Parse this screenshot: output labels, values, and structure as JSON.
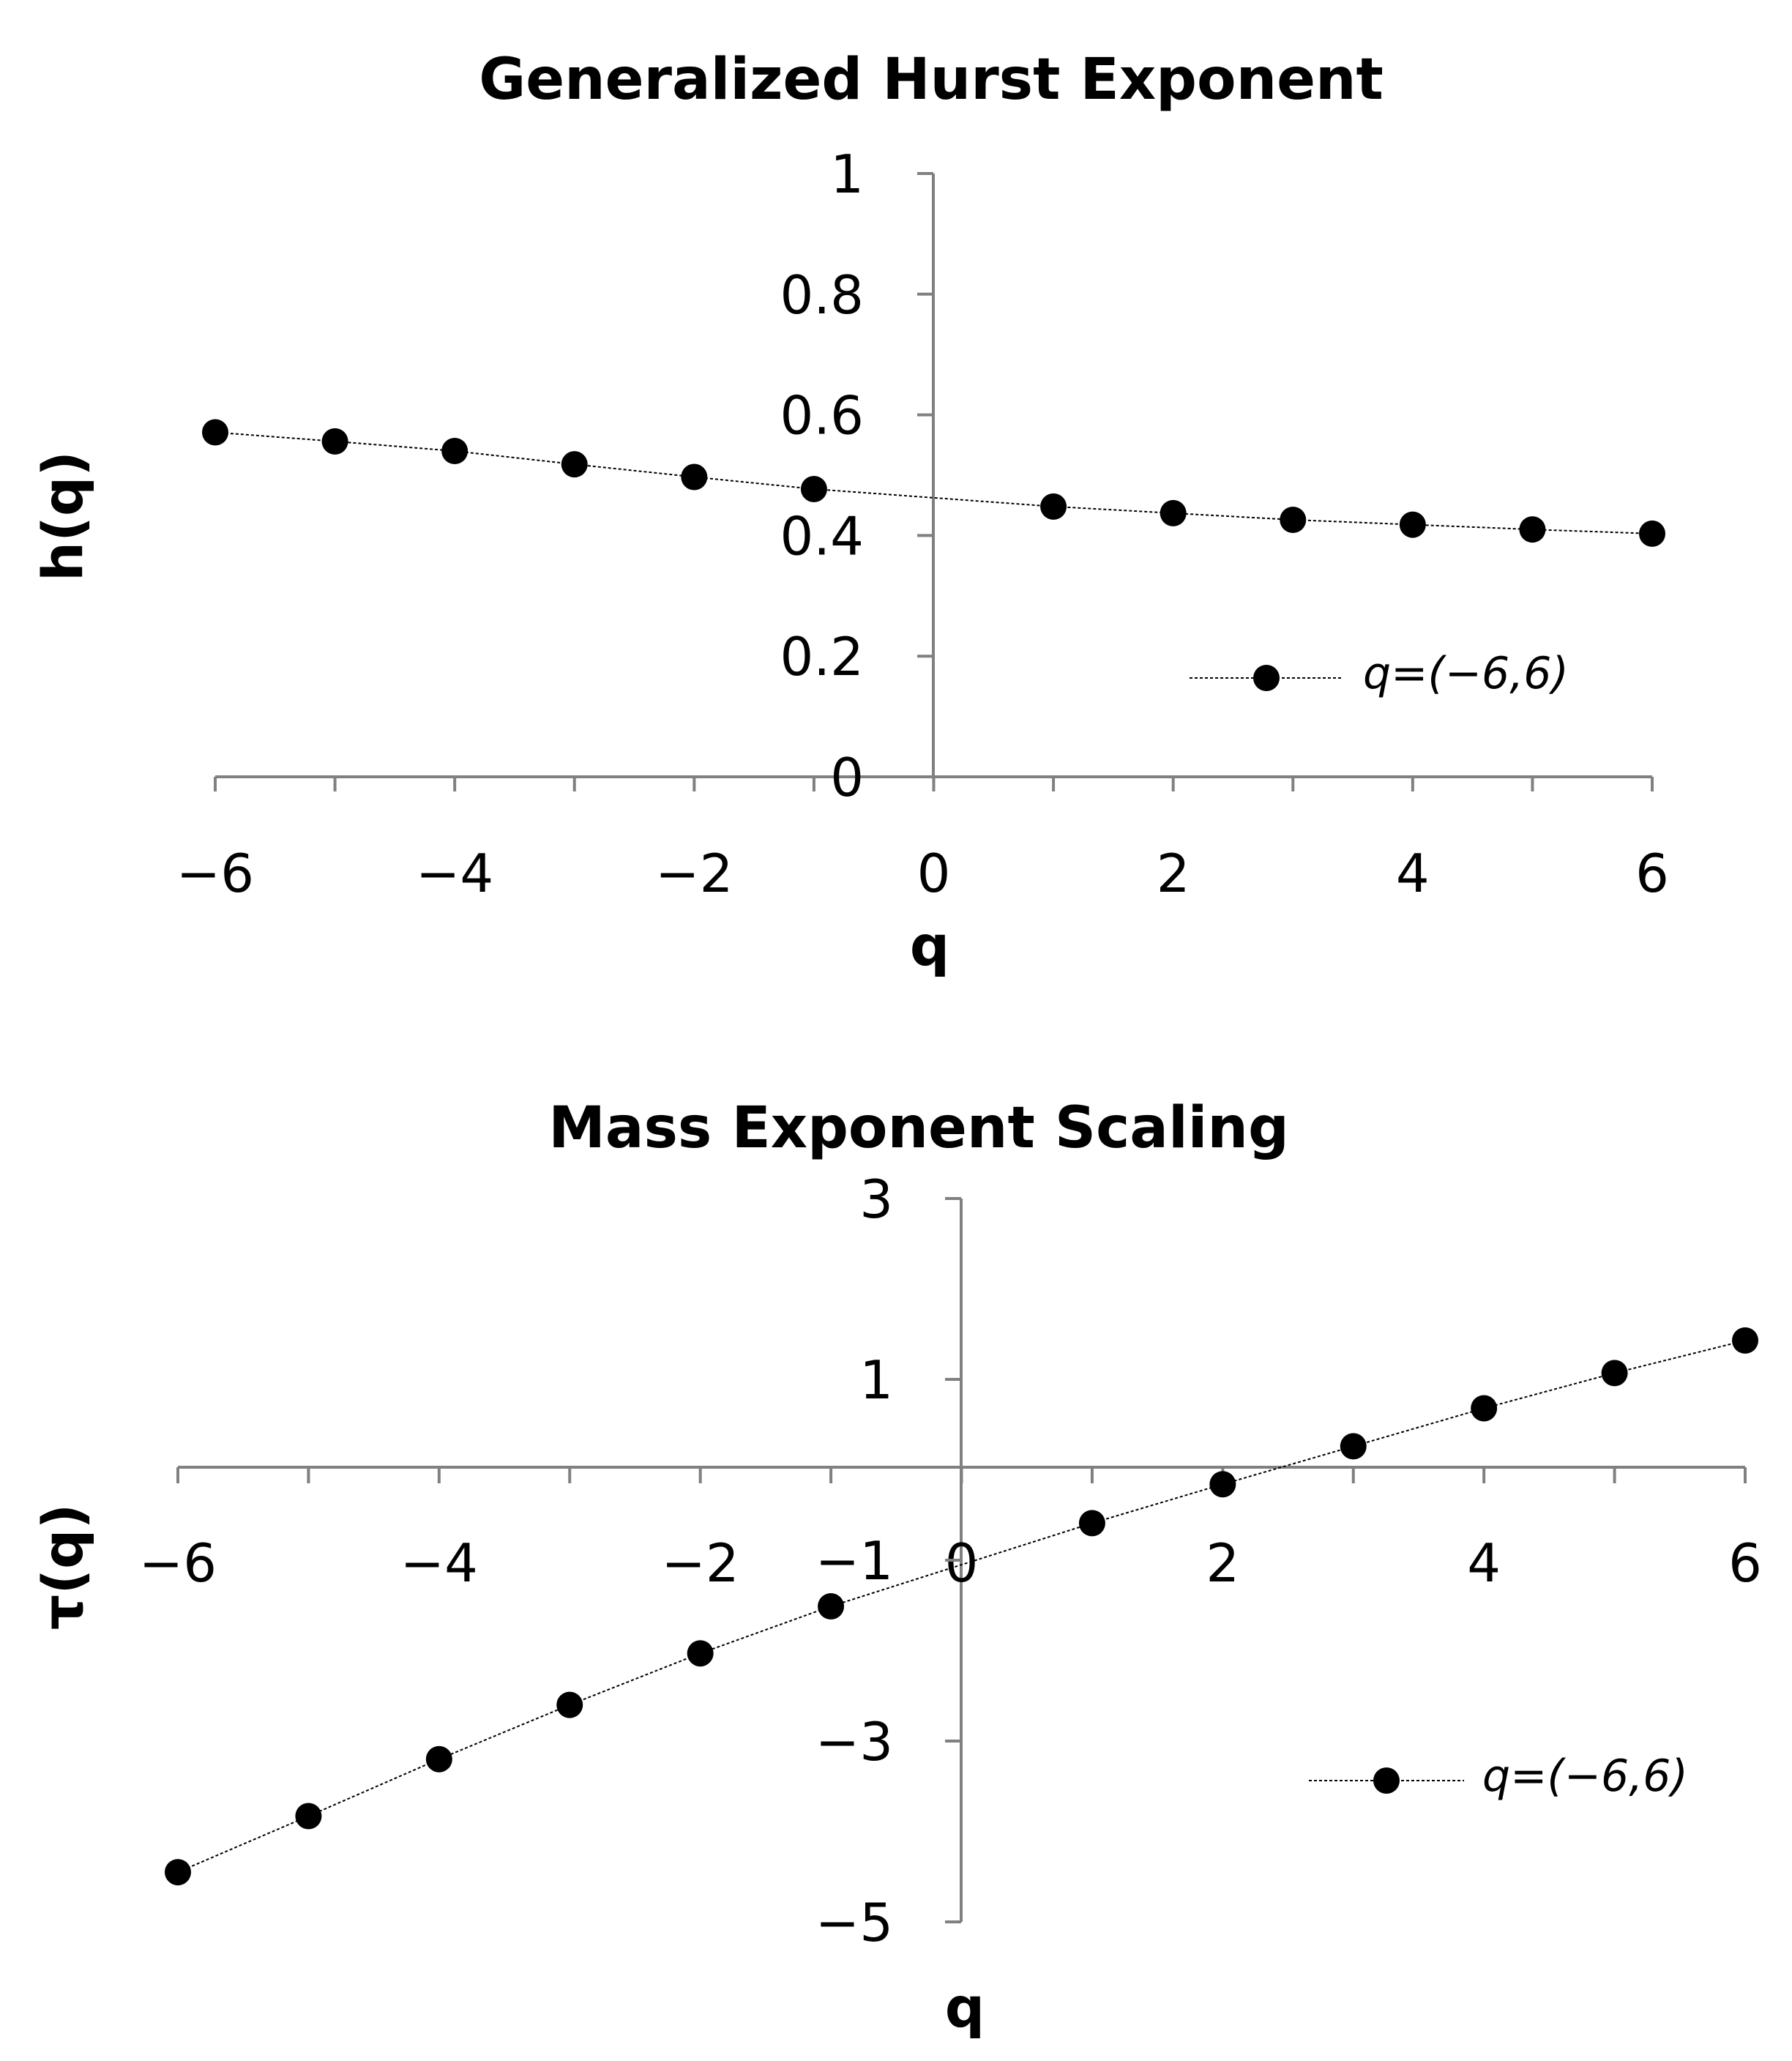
{
  "chart_data": [
    {
      "type": "line",
      "title": "Generalized Hurst Exponent",
      "xlabel": "q",
      "ylabel": "h(q)",
      "xlim": [
        -6,
        6
      ],
      "ylim": [
        0,
        1
      ],
      "x_ticks": [
        -6,
        -4,
        -2,
        0,
        2,
        4,
        6
      ],
      "x_tick_labels": [
        "−6",
        "−4",
        "−2",
        "0",
        "2",
        "4",
        "6"
      ],
      "y_ticks": [
        0,
        0.2,
        0.4,
        0.6,
        0.8,
        1
      ],
      "y_tick_labels": [
        "0",
        "0.2",
        "0.4",
        "0.6",
        "0.8",
        "1"
      ],
      "legend": "right",
      "grid": false,
      "series": [
        {
          "name": "q=(−6,6)",
          "x": [
            -6,
            -5,
            -4,
            -3,
            -2,
            -1,
            1,
            2,
            3,
            4,
            5,
            6
          ],
          "y": [
            0.571,
            0.556,
            0.54,
            0.518,
            0.497,
            0.477,
            0.448,
            0.437,
            0.426,
            0.418,
            0.41,
            0.403
          ]
        }
      ]
    },
    {
      "type": "line",
      "title": "Mass Exponent Scaling",
      "xlabel": "q",
      "ylabel": "τ(q)",
      "xlim": [
        -6,
        6
      ],
      "ylim": [
        -5,
        3
      ],
      "x_ticks": [
        -6,
        -4,
        -2,
        0,
        2,
        4,
        6
      ],
      "x_tick_labels": [
        "−6",
        "−4",
        "−2",
        "0",
        "2",
        "4",
        "6"
      ],
      "y_ticks": [
        -5,
        -3,
        -1,
        1,
        3
      ],
      "y_tick_labels": [
        "−5",
        "−3",
        "−1",
        "1",
        "3"
      ],
      "legend": "bottom-right",
      "grid": false,
      "series": [
        {
          "name": "q=(−6,6)",
          "x": [
            -6,
            -5,
            -4,
            -3,
            -2,
            -1,
            1,
            2,
            3,
            4,
            5,
            6
          ],
          "y": [
            -4.45,
            -3.83,
            -3.2,
            -2.6,
            -2.03,
            -1.51,
            -0.59,
            -0.16,
            0.26,
            0.68,
            1.07,
            1.43
          ]
        }
      ]
    }
  ]
}
